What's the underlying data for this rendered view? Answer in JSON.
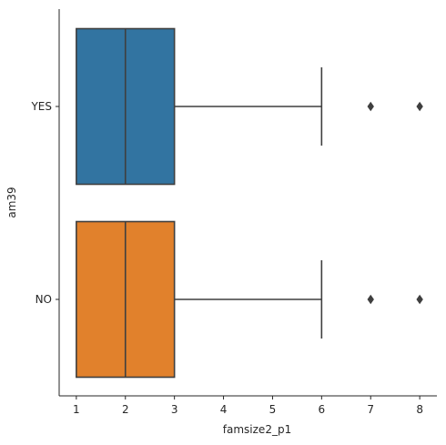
{
  "chart_data": {
    "type": "box",
    "orientation": "horizontal",
    "xlabel": "famsize2_p1",
    "ylabel": "am39",
    "xlim": [
      0.65,
      8.35
    ],
    "xticks": [
      1,
      2,
      3,
      4,
      5,
      6,
      7,
      8
    ],
    "categories": [
      "YES",
      "NO"
    ],
    "grid": false,
    "boxes": [
      {
        "category": "YES",
        "whisker_low": 1,
        "q1": 1,
        "median": 2,
        "q3": 3,
        "whisker_high": 6,
        "outliers": [
          7,
          8
        ],
        "color": "#3274a1"
      },
      {
        "category": "NO",
        "whisker_low": 1,
        "q1": 1,
        "median": 2,
        "q3": 3,
        "whisker_high": 6,
        "outliers": [
          7,
          8
        ],
        "color": "#e1812c"
      }
    ]
  },
  "colors": {
    "line": "#3f3f3f",
    "axis": "#262626"
  }
}
